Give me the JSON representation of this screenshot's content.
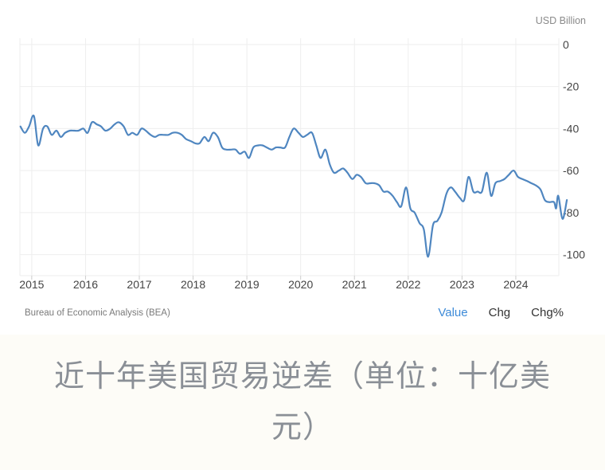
{
  "header": {
    "unit_label": "USD Billion"
  },
  "footer": {
    "source": "Bureau of Economic Analysis (BEA)"
  },
  "tabs": [
    {
      "label": "Value",
      "active": true
    },
    {
      "label": "Chg",
      "active": false
    },
    {
      "label": "Chg%",
      "active": false
    }
  ],
  "caption": "近十年美国贸易逆差（单位：十亿美元）",
  "colors": {
    "line": "#4f86c0",
    "grid": "#eeeeee",
    "active_tab": "#3c8ad8"
  },
  "chart_data": {
    "type": "line",
    "title": "",
    "xlabel": "",
    "ylabel": "USD Billion",
    "x_ticks": [
      "2015",
      "2016",
      "2017",
      "2018",
      "2019",
      "2020",
      "2021",
      "2022",
      "2023",
      "2024"
    ],
    "y_ticks": [
      0,
      -20,
      -40,
      -60,
      -80,
      -100
    ],
    "xlim": [
      2014.78,
      2024.8
    ],
    "ylim": [
      -110,
      3
    ],
    "grid": true,
    "series": [
      {
        "name": "",
        "points": [
          [
            2014.79,
            -39
          ],
          [
            2014.87,
            -42
          ],
          [
            2014.95,
            -39
          ],
          [
            2015.04,
            -34
          ],
          [
            2015.12,
            -48
          ],
          [
            2015.21,
            -40
          ],
          [
            2015.29,
            -39
          ],
          [
            2015.37,
            -43
          ],
          [
            2015.46,
            -41
          ],
          [
            2015.54,
            -44
          ],
          [
            2015.62,
            -42
          ],
          [
            2015.71,
            -41
          ],
          [
            2015.79,
            -41
          ],
          [
            2015.87,
            -41
          ],
          [
            2015.96,
            -40
          ],
          [
            2016.04,
            -42
          ],
          [
            2016.12,
            -37
          ],
          [
            2016.21,
            -38
          ],
          [
            2016.29,
            -39
          ],
          [
            2016.37,
            -41
          ],
          [
            2016.46,
            -40
          ],
          [
            2016.54,
            -38
          ],
          [
            2016.62,
            -37
          ],
          [
            2016.71,
            -39
          ],
          [
            2016.79,
            -43
          ],
          [
            2016.87,
            -42
          ],
          [
            2016.96,
            -43
          ],
          [
            2017.04,
            -40
          ],
          [
            2017.12,
            -41
          ],
          [
            2017.21,
            -43
          ],
          [
            2017.29,
            -44
          ],
          [
            2017.37,
            -43
          ],
          [
            2017.46,
            -43
          ],
          [
            2017.54,
            -43
          ],
          [
            2017.62,
            -42
          ],
          [
            2017.71,
            -42
          ],
          [
            2017.79,
            -43
          ],
          [
            2017.87,
            -45
          ],
          [
            2017.96,
            -46
          ],
          [
            2018.04,
            -47
          ],
          [
            2018.12,
            -47
          ],
          [
            2018.21,
            -44
          ],
          [
            2018.29,
            -46
          ],
          [
            2018.37,
            -42
          ],
          [
            2018.46,
            -44
          ],
          [
            2018.54,
            -49
          ],
          [
            2018.62,
            -50
          ],
          [
            2018.71,
            -50
          ],
          [
            2018.79,
            -50
          ],
          [
            2018.87,
            -52
          ],
          [
            2018.96,
            -51
          ],
          [
            2019.04,
            -54
          ],
          [
            2019.12,
            -49
          ],
          [
            2019.21,
            -48
          ],
          [
            2019.29,
            -48
          ],
          [
            2019.37,
            -49
          ],
          [
            2019.46,
            -50
          ],
          [
            2019.54,
            -49
          ],
          [
            2019.62,
            -49
          ],
          [
            2019.71,
            -49
          ],
          [
            2019.79,
            -44
          ],
          [
            2019.87,
            -40
          ],
          [
            2019.96,
            -42
          ],
          [
            2020.04,
            -44
          ],
          [
            2020.12,
            -43
          ],
          [
            2020.21,
            -42
          ],
          [
            2020.29,
            -48
          ],
          [
            2020.37,
            -54
          ],
          [
            2020.46,
            -50
          ],
          [
            2020.54,
            -57
          ],
          [
            2020.62,
            -61
          ],
          [
            2020.71,
            -60
          ],
          [
            2020.79,
            -59
          ],
          [
            2020.87,
            -61
          ],
          [
            2020.96,
            -64
          ],
          [
            2021.04,
            -62
          ],
          [
            2021.12,
            -63
          ],
          [
            2021.21,
            -66
          ],
          [
            2021.29,
            -66
          ],
          [
            2021.37,
            -66
          ],
          [
            2021.46,
            -67
          ],
          [
            2021.54,
            -70
          ],
          [
            2021.62,
            -70
          ],
          [
            2021.71,
            -72
          ],
          [
            2021.79,
            -75
          ],
          [
            2021.87,
            -77
          ],
          [
            2021.96,
            -68
          ],
          [
            2022.04,
            -78
          ],
          [
            2022.12,
            -80
          ],
          [
            2022.21,
            -85
          ],
          [
            2022.29,
            -88
          ],
          [
            2022.37,
            -101
          ],
          [
            2022.46,
            -86
          ],
          [
            2022.54,
            -84
          ],
          [
            2022.62,
            -80
          ],
          [
            2022.71,
            -71
          ],
          [
            2022.79,
            -68
          ],
          [
            2022.87,
            -70
          ],
          [
            2022.96,
            -73
          ],
          [
            2023.04,
            -74
          ],
          [
            2023.12,
            -63
          ],
          [
            2023.21,
            -70
          ],
          [
            2023.29,
            -70
          ],
          [
            2023.37,
            -70
          ],
          [
            2023.46,
            -61
          ],
          [
            2023.54,
            -72
          ],
          [
            2023.62,
            -66
          ],
          [
            2023.71,
            -65
          ],
          [
            2023.79,
            -64
          ],
          [
            2023.87,
            -62
          ],
          [
            2023.96,
            -60
          ],
          [
            2024.04,
            -63
          ],
          [
            2024.12,
            -64
          ],
          [
            2024.21,
            -65
          ],
          [
            2024.29,
            -66
          ],
          [
            2024.37,
            -67
          ],
          [
            2024.46,
            -69
          ],
          [
            2024.54,
            -74
          ],
          [
            2024.62,
            -75
          ],
          [
            2024.71,
            -75
          ],
          [
            2024.75,
            -78
          ],
          [
            2024.79,
            -72
          ],
          [
            2024.87,
            -83
          ],
          [
            2024.95,
            -74
          ]
        ]
      }
    ]
  }
}
